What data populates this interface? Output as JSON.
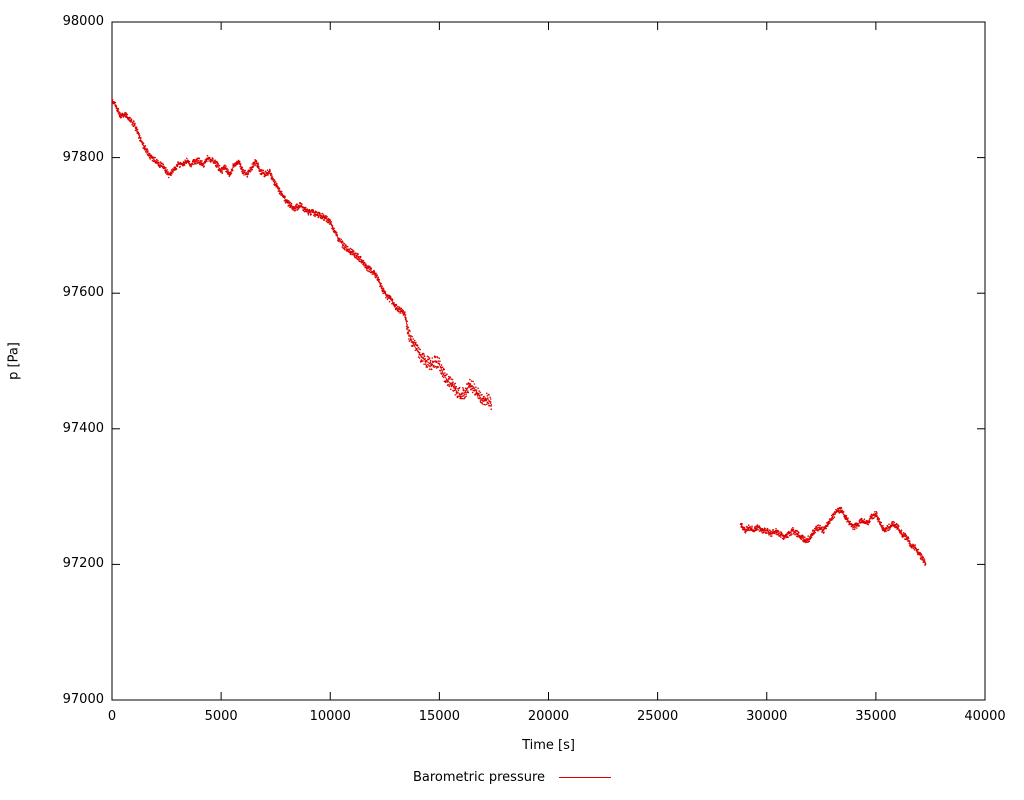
{
  "page": {
    "background": "#ffffff"
  },
  "chart_data": {
    "type": "scatter",
    "title": "",
    "xlabel": "Time [s]",
    "ylabel": "p [Pa]",
    "xlim": [
      0,
      40000
    ],
    "ylim": [
      97000,
      98000
    ],
    "x_ticks": [
      0,
      5000,
      10000,
      15000,
      20000,
      25000,
      30000,
      35000,
      40000
    ],
    "y_ticks": [
      97000,
      97200,
      97400,
      97600,
      97800,
      98000
    ],
    "grid": false,
    "color": "#dd0000",
    "legend": {
      "label": "Barometric pressure",
      "position": "bottom-center"
    },
    "series": [
      {
        "name": "Barometric pressure",
        "color": "#dd0000",
        "segments": [
          [
            [
              0,
              97885
            ],
            [
              200,
              97875
            ],
            [
              400,
              97860
            ],
            [
              600,
              97865
            ],
            [
              800,
              97855
            ],
            [
              1000,
              97850
            ],
            [
              1200,
              97835
            ],
            [
              1400,
              97820
            ],
            [
              1600,
              97810
            ],
            [
              1800,
              97800
            ],
            [
              2000,
              97795
            ],
            [
              2200,
              97790
            ],
            [
              2400,
              97785
            ],
            [
              2600,
              97775
            ],
            [
              2800,
              97780
            ],
            [
              3000,
              97790
            ],
            [
              3200,
              97790
            ],
            [
              3400,
              97795
            ],
            [
              3600,
              97790
            ],
            [
              3800,
              97795
            ],
            [
              4000,
              97795
            ],
            [
              4200,
              97790
            ],
            [
              4400,
              97800
            ],
            [
              4600,
              97795
            ],
            [
              4800,
              97790
            ],
            [
              5000,
              97780
            ],
            [
              5200,
              97785
            ],
            [
              5400,
              97775
            ],
            [
              5600,
              97790
            ],
            [
              5800,
              97795
            ],
            [
              6000,
              97780
            ],
            [
              6200,
              97775
            ],
            [
              6400,
              97785
            ],
            [
              6600,
              97795
            ],
            [
              6800,
              97780
            ],
            [
              7000,
              97775
            ],
            [
              7200,
              97780
            ],
            [
              7400,
              97765
            ],
            [
              7600,
              97755
            ],
            [
              7800,
              97745
            ],
            [
              8000,
              97735
            ],
            [
              8200,
              97730
            ],
            [
              8400,
              97725
            ],
            [
              8600,
              97730
            ],
            [
              8800,
              97725
            ],
            [
              9000,
              97720
            ],
            [
              9200,
              97720
            ],
            [
              9400,
              97715
            ],
            [
              9600,
              97715
            ],
            [
              9800,
              97710
            ],
            [
              10000,
              97705
            ],
            [
              10200,
              97690
            ],
            [
              10400,
              97680
            ],
            [
              10600,
              97670
            ],
            [
              10800,
              97665
            ],
            [
              11000,
              97660
            ],
            [
              11200,
              97655
            ],
            [
              11400,
              97650
            ],
            [
              11600,
              97640
            ],
            [
              11800,
              97635
            ],
            [
              12000,
              97630
            ],
            [
              12200,
              97620
            ],
            [
              12400,
              97605
            ],
            [
              12600,
              97595
            ],
            [
              12800,
              97590
            ],
            [
              13000,
              97580
            ],
            [
              13200,
              97575
            ],
            [
              13400,
              97570
            ],
            [
              13600,
              97540
            ],
            [
              13800,
              97525
            ],
            [
              14000,
              97515
            ],
            [
              14200,
              97505
            ],
            [
              14400,
              97500
            ],
            [
              14600,
              97495
            ],
            [
              14800,
              97500
            ],
            [
              15000,
              97495
            ],
            [
              15200,
              97480
            ],
            [
              15400,
              97470
            ],
            [
              15600,
              97465
            ],
            [
              15800,
              97455
            ],
            [
              16000,
              97450
            ],
            [
              16200,
              97455
            ],
            [
              16400,
              97465
            ],
            [
              16600,
              97460
            ],
            [
              16800,
              97450
            ],
            [
              17000,
              97440
            ],
            [
              17200,
              97445
            ],
            [
              17400,
              97435
            ]
          ],
          [
            [
              28800,
              97260
            ],
            [
              29000,
              97250
            ],
            [
              29200,
              97255
            ],
            [
              29400,
              97250
            ],
            [
              29600,
              97255
            ],
            [
              29800,
              97250
            ],
            [
              30000,
              97250
            ],
            [
              30200,
              97245
            ],
            [
              30400,
              97250
            ],
            [
              30600,
              97245
            ],
            [
              30800,
              97240
            ],
            [
              31000,
              97245
            ],
            [
              31200,
              97250
            ],
            [
              31400,
              97245
            ],
            [
              31600,
              97240
            ],
            [
              31800,
              97235
            ],
            [
              32000,
              97240
            ],
            [
              32200,
              97250
            ],
            [
              32400,
              97255
            ],
            [
              32600,
              97250
            ],
            [
              32800,
              97260
            ],
            [
              33000,
              97270
            ],
            [
              33200,
              97278
            ],
            [
              33400,
              97280
            ],
            [
              33600,
              97270
            ],
            [
              33800,
              97260
            ],
            [
              34000,
              97255
            ],
            [
              34200,
              97260
            ],
            [
              34400,
              97265
            ],
            [
              34600,
              97260
            ],
            [
              34800,
              97270
            ],
            [
              35000,
              97275
            ],
            [
              35200,
              97260
            ],
            [
              35400,
              97250
            ],
            [
              35600,
              97255
            ],
            [
              35800,
              97260
            ],
            [
              36000,
              97255
            ],
            [
              36200,
              97245
            ],
            [
              36400,
              97240
            ],
            [
              36600,
              97230
            ],
            [
              36800,
              97225
            ],
            [
              37000,
              97215
            ],
            [
              37200,
              97205
            ],
            [
              37300,
              97200
            ]
          ]
        ]
      }
    ]
  }
}
